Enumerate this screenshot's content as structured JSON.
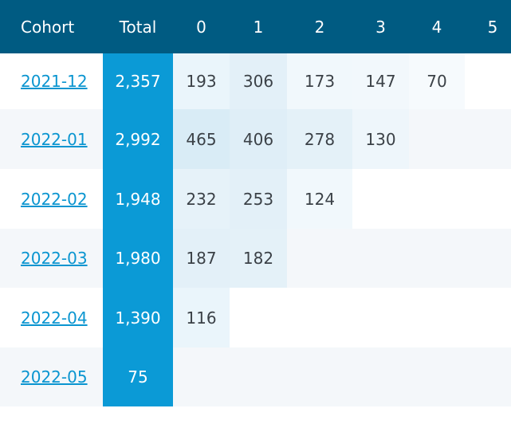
{
  "header": {
    "cohort": "Cohort",
    "total": "Total",
    "periods": [
      "0",
      "1",
      "2",
      "3",
      "4",
      "5"
    ]
  },
  "rows": [
    {
      "cohort": "2021-12",
      "total": "2,357",
      "values": [
        "193",
        "306",
        "173",
        "147",
        "70",
        ""
      ]
    },
    {
      "cohort": "2022-01",
      "total": "2,992",
      "values": [
        "465",
        "406",
        "278",
        "130",
        "",
        ""
      ]
    },
    {
      "cohort": "2022-02",
      "total": "1,948",
      "values": [
        "232",
        "253",
        "124",
        "",
        "",
        ""
      ]
    },
    {
      "cohort": "2022-03",
      "total": "1,980",
      "values": [
        "187",
        "182",
        "",
        "",
        "",
        ""
      ]
    },
    {
      "cohort": "2022-04",
      "total": "1,390",
      "values": [
        "116",
        "",
        "",
        "",
        "",
        ""
      ]
    },
    {
      "cohort": "2022-05",
      "total": "75",
      "values": [
        "",
        "",
        "",
        "",
        "",
        ""
      ]
    }
  ],
  "colors": {
    "header_bg": "#005b82",
    "total_bg": "#0b9ad6",
    "link": "#0a95d0",
    "stripe": "#f4f7fa",
    "heat_low": "#f4fafd",
    "heat_high": "#d9ecf6"
  }
}
